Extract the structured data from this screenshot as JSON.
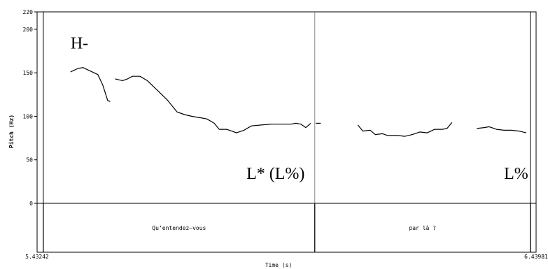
{
  "chart_data": {
    "type": "line",
    "title": "",
    "xlabel": "Time (s)",
    "ylabel": "Pitch (Hz)",
    "xlim": [
      5.43242,
      6.43981
    ],
    "ylim": [
      0,
      220
    ],
    "x_tick_labels": [
      "5.43242",
      "6.43981"
    ],
    "y_ticks": [
      0,
      50,
      100,
      150,
      200,
      220
    ],
    "grid": false,
    "series": [
      {
        "segments": [
          [
            [
              5.5,
              151
            ],
            [
              5.515,
              155
            ],
            [
              5.525,
              156
            ],
            [
              5.54,
              152
            ],
            [
              5.555,
              148
            ],
            [
              5.565,
              136
            ],
            [
              5.575,
              118
            ],
            [
              5.58,
              117
            ]
          ],
          [
            [
              5.59,
              143
            ],
            [
              5.605,
              141
            ],
            [
              5.615,
              143
            ],
            [
              5.625,
              146
            ],
            [
              5.64,
              146
            ],
            [
              5.655,
              141
            ],
            [
              5.675,
              130
            ],
            [
              5.695,
              119
            ],
            [
              5.715,
              105
            ],
            [
              5.73,
              102
            ],
            [
              5.745,
              100
            ],
            [
              5.765,
              98
            ],
            [
              5.775,
              97
            ],
            [
              5.79,
              92
            ],
            [
              5.8,
              85
            ],
            [
              5.815,
              85
            ],
            [
              5.825,
              83
            ],
            [
              5.835,
              81
            ],
            [
              5.85,
              84
            ],
            [
              5.865,
              89
            ],
            [
              5.885,
              90
            ],
            [
              5.905,
              91
            ],
            [
              5.93,
              91
            ],
            [
              5.945,
              91
            ],
            [
              5.955,
              92
            ],
            [
              5.965,
              91
            ],
            [
              5.975,
              87
            ],
            [
              5.985,
              92
            ]
          ],
          [
            [
              5.995,
              92
            ],
            [
              6.005,
              92
            ]
          ],
          [
            [
              6.08,
              90
            ],
            [
              6.09,
              83
            ],
            [
              6.105,
              84
            ],
            [
              6.115,
              79
            ],
            [
              6.13,
              80
            ],
            [
              6.14,
              78
            ],
            [
              6.16,
              78
            ],
            [
              6.175,
              77
            ],
            [
              6.19,
              79
            ],
            [
              6.205,
              82
            ],
            [
              6.22,
              81
            ],
            [
              6.235,
              85
            ],
            [
              6.25,
              85
            ],
            [
              6.26,
              86
            ],
            [
              6.27,
              93
            ]
          ],
          [
            [
              6.32,
              86
            ],
            [
              6.335,
              87
            ],
            [
              6.345,
              88
            ],
            [
              6.36,
              85
            ],
            [
              6.375,
              84
            ],
            [
              6.39,
              84
            ],
            [
              6.405,
              83
            ],
            [
              6.42,
              81
            ]
          ]
        ]
      }
    ],
    "annotations": [
      {
        "text": "H-",
        "x": 5.5,
        "y": 178
      },
      {
        "text": "L* (L%)",
        "x": 5.855,
        "y": 28
      },
      {
        "text": "L%",
        "x": 6.375,
        "y": 28
      }
    ],
    "tier": {
      "boundaries": [
        5.445,
        5.993,
        6.428
      ],
      "intervals": [
        {
          "label": "Qu’entendez–vous",
          "start": 5.445,
          "end": 5.993
        },
        {
          "label": "par là ?",
          "start": 5.993,
          "end": 6.428
        }
      ]
    }
  }
}
